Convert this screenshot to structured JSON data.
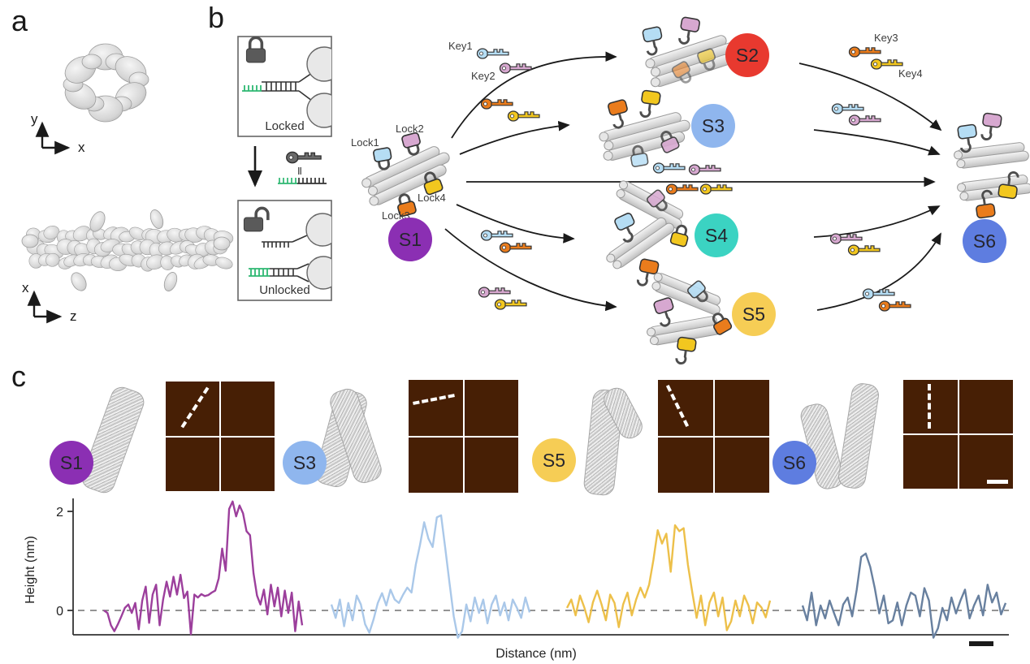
{
  "figure": {
    "panel_a_label": "a",
    "panel_b_label": "b",
    "panel_c_label": "c"
  },
  "panel_a": {
    "axes_top": {
      "vertical": "y",
      "horizontal": "x"
    },
    "axes_bottom": {
      "vertical": "x",
      "horizontal": "z"
    }
  },
  "panel_b": {
    "locked_label": "Locked",
    "unlocked_label": "Unlocked",
    "equivalence_sign": "‖",
    "locks": [
      {
        "id": "Lock1",
        "color": "#b5ddf4"
      },
      {
        "id": "Lock2",
        "color": "#d7a8d0"
      },
      {
        "id": "Lock3",
        "color": "#ea7c1c"
      },
      {
        "id": "Lock4",
        "color": "#f2c71f"
      }
    ],
    "keys": [
      {
        "id": "Key1",
        "color": "#b5ddf4"
      },
      {
        "id": "Key2",
        "color": "#d7a8d0"
      },
      {
        "id": "Key3",
        "color": "#ea7c1c"
      },
      {
        "id": "Key4",
        "color": "#f2c71f"
      }
    ],
    "states": [
      {
        "id": "S1",
        "color": "#8b2fb3"
      },
      {
        "id": "S2",
        "color": "#e8392f"
      },
      {
        "id": "S3",
        "color": "#8fb6ee"
      },
      {
        "id": "S4",
        "color": "#3bd3c2"
      },
      {
        "id": "S5",
        "color": "#f6cd55"
      },
      {
        "id": "S6",
        "color": "#5e7de0"
      }
    ],
    "toehold_color": "#2eb872",
    "padlock_color": "#5a5a5a"
  },
  "panel_c": {
    "states": [
      {
        "id": "S1",
        "color": "#8b2fb3"
      },
      {
        "id": "S3",
        "color": "#8fb6ee"
      },
      {
        "id": "S5",
        "color": "#f6cd55"
      },
      {
        "id": "S6",
        "color": "#5e7de0"
      }
    ]
  },
  "chart_data": {
    "type": "line",
    "title": "",
    "xlabel": "Distance (nm)",
    "ylabel": "Height (nm)",
    "yticks": [
      0,
      2
    ],
    "ylim": [
      -0.8,
      2.4
    ],
    "grid": false,
    "zero_line_dashed": true,
    "legend": "none",
    "series": [
      {
        "name": "S1",
        "color": "#9c3f9c",
        "values": [
          0,
          -0.05,
          -0.3,
          -0.42,
          -0.28,
          -0.12,
          0.05,
          0.12,
          -0.05,
          0.15,
          -0.38,
          0.2,
          0.48,
          -0.25,
          0.32,
          0.52,
          -0.3,
          0.22,
          0.58,
          0.28,
          0.68,
          0.32,
          0.72,
          0.25,
          0.38,
          -0.48,
          0.32,
          0.26,
          0.33,
          0.29,
          0.31,
          0.36,
          0.4,
          0.65,
          1.25,
          0.8,
          2.05,
          2.2,
          1.9,
          2.12,
          1.96,
          1.6,
          1.52,
          0.75,
          0.3,
          0.12,
          0.42,
          -0.08,
          0.52,
          0.08,
          0.46,
          -0.12,
          0.4,
          -0.05,
          0.36,
          -0.42,
          0.18,
          -0.3
        ]
      },
      {
        "name": "S3",
        "color": "#aac8e9",
        "values": [
          0.12,
          -0.15,
          0.22,
          -0.32,
          0.15,
          -0.2,
          0.3,
          0.12,
          -0.28,
          -0.45,
          -0.18,
          0.15,
          0.35,
          0.1,
          0.42,
          0.22,
          0.15,
          0.32,
          0.46,
          0.36,
          0.92,
          1.32,
          1.78,
          1.45,
          1.28,
          1.88,
          1.92,
          1.25,
          0.55,
          -0.12,
          -0.55,
          -0.42,
          0.12,
          -0.22,
          0.26,
          -0.05,
          0.22,
          -0.26,
          0.12,
          0.3,
          -0.1,
          0.16,
          -0.2,
          0.22,
          0.05,
          -0.15,
          0.26,
          -0.04
        ]
      },
      {
        "name": "S5",
        "color": "#edc04a",
        "values": [
          0.05,
          0.22,
          -0.1,
          0.3,
          0.06,
          -0.24,
          0.16,
          0.4,
          0.12,
          -0.2,
          0.32,
          0.15,
          -0.34,
          0.12,
          0.36,
          -0.1,
          0.22,
          0.46,
          0.26,
          0.52,
          1.02,
          1.62,
          1.35,
          1.55,
          0.78,
          1.72,
          1.6,
          1.66,
          0.92,
          0.36,
          -0.15,
          0.3,
          -0.3,
          0.16,
          0.36,
          -0.12,
          0.26,
          -0.4,
          -0.22,
          0.2,
          -0.12,
          0.3,
          0.1,
          -0.26,
          0.16,
          0.06,
          -0.14,
          0.2
        ]
      },
      {
        "name": "S6",
        "color": "#68809f",
        "values": [
          0.1,
          -0.2,
          0.36,
          -0.3,
          0.1,
          -0.16,
          0.2,
          -0.06,
          -0.3,
          0.12,
          0.26,
          -0.12,
          0.42,
          1.08,
          1.15,
          0.88,
          0.45,
          -0.06,
          0.3,
          -0.26,
          -0.2,
          0.16,
          -0.3,
          0.1,
          0.36,
          0.3,
          -0.12,
          0.45,
          0.2,
          -0.55,
          -0.36,
          0.05,
          -0.2,
          0.26,
          -0.06,
          0.2,
          0.42,
          -0.16,
          0.1,
          0.3,
          -0.1,
          0.52,
          0.16,
          0.36,
          -0.08,
          0.15
        ]
      }
    ]
  }
}
